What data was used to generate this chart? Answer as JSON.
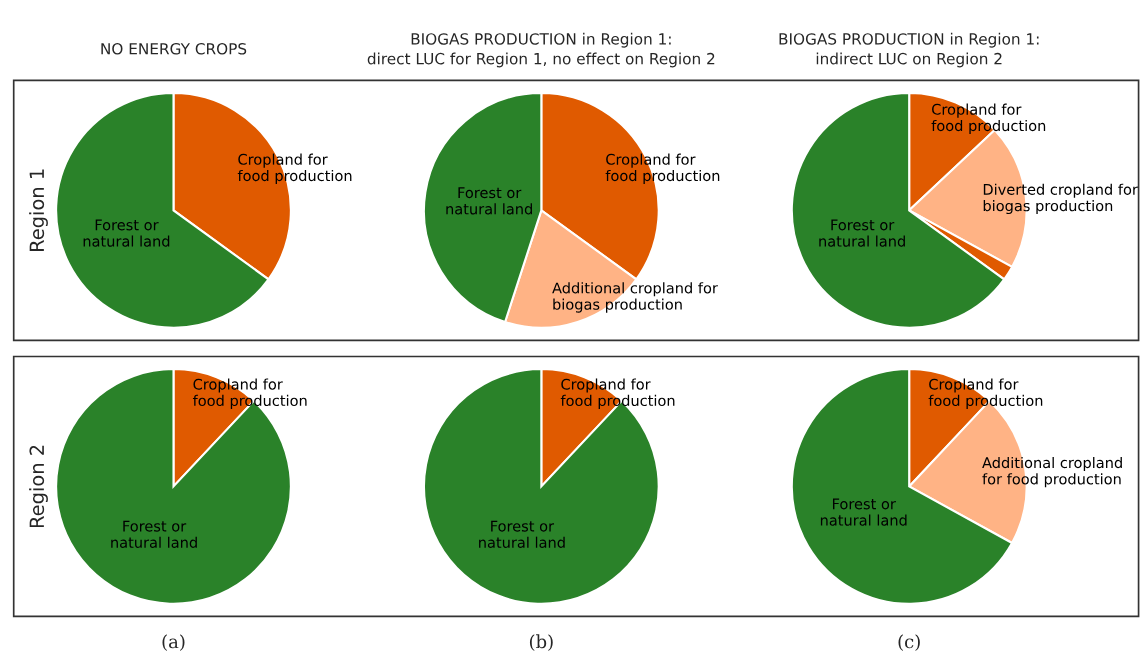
{
  "chart_data": [
    {
      "type": "pie",
      "title": "NO ENERGY CROPS",
      "ylabel": "Region 1",
      "categories": [
        "Cropland for\nfood production",
        "Forest or\nnatural land"
      ],
      "values": [
        35,
        65
      ],
      "colors": [
        "#e05a00",
        "#2a8229"
      ]
    },
    {
      "type": "pie",
      "title": "BIOGAS PRODUCTION in Region 1:",
      "subtitle": "direct LUC for Region 1, no effect on Region 2",
      "categories": [
        "Cropland for\nfood production",
        "Additional cropland for\nbiogas production",
        "Forest or\nnatural land"
      ],
      "values": [
        35,
        20,
        45
      ],
      "colors": [
        "#e05a00",
        "#ffb385",
        "#2a8229"
      ]
    },
    {
      "type": "pie",
      "title": "BIOGAS PRODUCTION in Region 1:",
      "subtitle": "indirect LUC on Region 2",
      "categories": [
        "Cropland for\nfood production",
        "Diverted cropland for\nbiogas production",
        null,
        "Forest or\nnatural land"
      ],
      "values": [
        13,
        20,
        2,
        65
      ],
      "colors": [
        "#e05a00",
        "#ffb385",
        "#e05a00",
        "#2a8229"
      ]
    },
    {
      "type": "pie",
      "ylabel": "Region 2",
      "xlabel": "(a)",
      "categories": [
        "Cropland for\nfood production",
        "Forest or\nnatural land"
      ],
      "values": [
        12,
        88
      ],
      "colors": [
        "#e05a00",
        "#2a8229"
      ]
    },
    {
      "type": "pie",
      "xlabel": "(b)",
      "categories": [
        "Cropland for\nfood production",
        "Forest or\nnatural land"
      ],
      "values": [
        12,
        88
      ],
      "colors": [
        "#e05a00",
        "#2a8229"
      ]
    },
    {
      "type": "pie",
      "xlabel": "(c)",
      "categories": [
        "Cropland for\nfood production",
        "Additional cropland\nfor food production",
        "Forest or\nnatural land"
      ],
      "values": [
        12,
        21,
        67
      ],
      "colors": [
        "#e05a00",
        "#ffb385",
        "#2a8229"
      ]
    }
  ]
}
